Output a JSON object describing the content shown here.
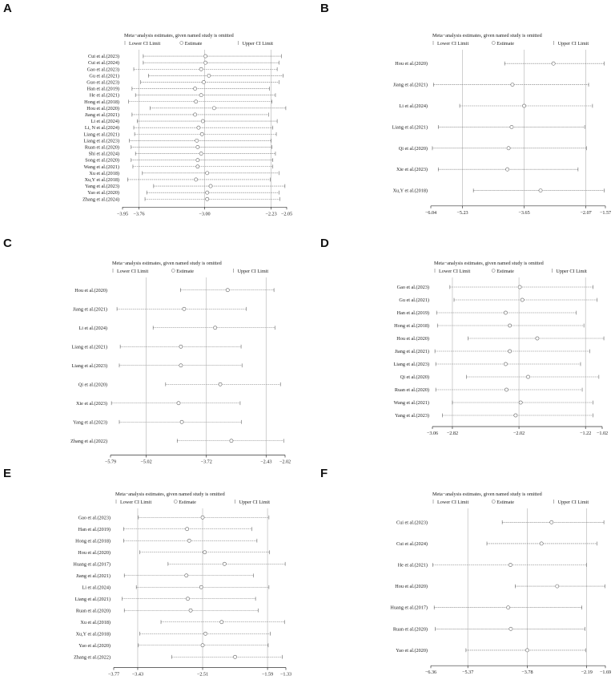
{
  "chart_data": [
    {
      "panel": "A",
      "type": "forest",
      "title": "Meta−analysis estimates, given named study is omitted",
      "legend": [
        "Lower CI Limit",
        "Estimate",
        "Upper CI Limit"
      ],
      "xticks": [
        -3.95,
        -3.76,
        -3.0,
        -2.23,
        -2.05
      ],
      "xtick_labels": [
        "−3.95",
        "−3.76",
        "−3.00",
        "−2.23",
        "−2.05"
      ],
      "vlines": [
        -3.76,
        -3.0,
        -2.23
      ],
      "xlim": [
        -3.95,
        -2.05
      ],
      "studies": [
        {
          "label": "Cui et al.(2023)",
          "lower": -3.71,
          "estimate": -2.99,
          "upper": -2.11
        },
        {
          "label": "Cui et al.(2024)",
          "lower": -3.71,
          "estimate": -2.99,
          "upper": -2.14
        },
        {
          "label": "Gao et al.(2023)",
          "lower": -3.82,
          "estimate": -3.04,
          "upper": -2.16
        },
        {
          "label": "Gu et al.(2021)",
          "lower": -3.65,
          "estimate": -2.95,
          "upper": -2.09
        },
        {
          "label": "Guo et al.(2023)",
          "lower": -3.74,
          "estimate": -3.01,
          "upper": -2.14
        },
        {
          "label": "Han et al.(2019)",
          "lower": -3.84,
          "estimate": -3.11,
          "upper": -2.25
        },
        {
          "label": "He et al.(2021)",
          "lower": -3.8,
          "estimate": -3.04,
          "upper": -2.18
        },
        {
          "label": "Hong et al.(2018)",
          "lower": -3.88,
          "estimate": -3.1,
          "upper": -2.22
        },
        {
          "label": "Hou et al.(2020)",
          "lower": -3.63,
          "estimate": -2.89,
          "upper": -2.06
        },
        {
          "label": "Jiang et al.(2021)",
          "lower": -3.84,
          "estimate": -3.11,
          "upper": -2.26
        },
        {
          "label": "Li et al.(2024)",
          "lower": -3.78,
          "estimate": -3.02,
          "upper": -2.16
        },
        {
          "label": "Li, N et al.(2024)",
          "lower": -3.82,
          "estimate": -3.07,
          "upper": -2.21
        },
        {
          "label": "Liang et al.(2021)",
          "lower": -3.81,
          "estimate": -3.03,
          "upper": -2.17
        },
        {
          "label": "Liang et al.(2023)",
          "lower": -3.87,
          "estimate": -3.09,
          "upper": -2.23
        },
        {
          "label": "Ruan et al.(2020)",
          "lower": -3.85,
          "estimate": -3.08,
          "upper": -2.22
        },
        {
          "label": "Shi et al.(2024)",
          "lower": -3.8,
          "estimate": -3.04,
          "upper": -2.18
        },
        {
          "label": "Song et al.(2020)",
          "lower": -3.85,
          "estimate": -3.08,
          "upper": -2.21
        },
        {
          "label": "Wang et al.(2021)",
          "lower": -3.83,
          "estimate": -3.08,
          "upper": -2.21
        },
        {
          "label": "Xu et al.(2018)",
          "lower": -3.72,
          "estimate": -2.97,
          "upper": -2.14
        },
        {
          "label": "Xu,Y et al.(2018)",
          "lower": -3.89,
          "estimate": -3.1,
          "upper": -2.24
        },
        {
          "label": "Yang et al.(2023)",
          "lower": -3.59,
          "estimate": -2.93,
          "upper": -2.07
        },
        {
          "label": "Yao et al.(2020)",
          "lower": -3.67,
          "estimate": -2.97,
          "upper": -2.14
        },
        {
          "label": "Zhang et al.(2024)",
          "lower": -3.69,
          "estimate": -2.97,
          "upper": -2.13
        }
      ]
    },
    {
      "panel": "B",
      "type": "forest",
      "title": "Meta−analysis estimates, given named study is omitted",
      "legend": [
        "Lower CI Limit",
        "Estimate",
        "Upper CI Limit"
      ],
      "xticks": [
        -6.04,
        -5.23,
        -3.65,
        -2.07,
        -1.57
      ],
      "xtick_labels": [
        "−6.04",
        "−5.23",
        "−3.65",
        "−2.07",
        "−1.57"
      ],
      "vlines": [
        -5.23,
        -3.65,
        -2.07
      ],
      "xlim": [
        -6.04,
        -1.57
      ],
      "studies": [
        {
          "label": "Hou et al.(2020)",
          "lower": -4.15,
          "estimate": -2.9,
          "upper": -1.6
        },
        {
          "label": "Jiang et al.(2021)",
          "lower": -5.97,
          "estimate": -3.95,
          "upper": -2.0
        },
        {
          "label": "Li et al.(2024)",
          "lower": -5.3,
          "estimate": -3.65,
          "upper": -1.9
        },
        {
          "label": "Liang et al.(2021)",
          "lower": -5.85,
          "estimate": -3.97,
          "upper": -2.1
        },
        {
          "label": "Qi et al.(2020)",
          "lower": -6.0,
          "estimate": -4.05,
          "upper": -2.05
        },
        {
          "label": "Xie et al.(2023)",
          "lower": -5.85,
          "estimate": -4.08,
          "upper": -2.27
        },
        {
          "label": "Xu,Y et al.(2018)",
          "lower": -4.95,
          "estimate": -3.23,
          "upper": -1.6
        }
      ]
    },
    {
      "panel": "C",
      "type": "forest",
      "title": "Meta−analysis estimates, given named study is omitted",
      "legend": [
        "Lower CI Limit",
        "Estimate",
        "Upper CI Limit"
      ],
      "xticks": [
        -5.79,
        -5.02,
        -3.72,
        -2.43,
        -2.02
      ],
      "xtick_labels": [
        "−5.79",
        "−5.02",
        "−3.72",
        "−2.43",
        "−2.02"
      ],
      "vlines": [
        -5.02,
        -3.72,
        -2.43
      ],
      "xlim": [
        -5.79,
        -2.02
      ],
      "studies": [
        {
          "label": "Hou et al.(2020)",
          "lower": -4.28,
          "estimate": -3.26,
          "upper": -2.26
        },
        {
          "label": "Jiang et al.(2021)",
          "lower": -5.65,
          "estimate": -4.2,
          "upper": -2.86
        },
        {
          "label": "Li et al.(2024)",
          "lower": -4.87,
          "estimate": -3.53,
          "upper": -2.24
        },
        {
          "label": "Liang et al.(2021)",
          "lower": -5.58,
          "estimate": -4.27,
          "upper": -2.97
        },
        {
          "label": "Liang et al.(2023)",
          "lower": -5.6,
          "estimate": -4.27,
          "upper": -2.95
        },
        {
          "label": "Qi et al.(2020)",
          "lower": -4.6,
          "estimate": -3.42,
          "upper": -2.12
        },
        {
          "label": "Xie et al.(2023)",
          "lower": -5.77,
          "estimate": -4.32,
          "upper": -2.99
        },
        {
          "label": "Yang et al.(2023)",
          "lower": -5.6,
          "estimate": -4.25,
          "upper": -2.96
        },
        {
          "label": "Zhang et al.(2022)",
          "lower": -4.35,
          "estimate": -3.18,
          "upper": -2.05
        }
      ]
    },
    {
      "panel": "D",
      "type": "forest",
      "title": "Meta−analysis estimates, given named study is omitted",
      "legend": [
        "Lower CI Limit",
        "Estimate",
        "Upper CI Limit"
      ],
      "xticks": [
        -3.06,
        -2.82,
        -2.02,
        -1.22,
        -1.02
      ],
      "xtick_labels": [
        "−3.06",
        "−2.82",
        "−2.02",
        "−1.22",
        "−1.02"
      ],
      "vlines": [
        -2.82,
        -2.02,
        -1.22
      ],
      "xlim": [
        -3.06,
        -1.02
      ],
      "studies": [
        {
          "label": "Gao et al.(2023)",
          "lower": -2.85,
          "estimate": -2.01,
          "upper": -1.13
        },
        {
          "label": "Gu et al.(2021)",
          "lower": -2.8,
          "estimate": -1.98,
          "upper": -1.08
        },
        {
          "label": "Han et al.(2019)",
          "lower": -3.01,
          "estimate": -2.18,
          "upper": -1.33
        },
        {
          "label": "Hong et al.(2018)",
          "lower": -3.0,
          "estimate": -2.13,
          "upper": -1.24
        },
        {
          "label": "Hou et al.(2020)",
          "lower": -2.63,
          "estimate": -1.8,
          "upper": -1.0
        },
        {
          "label": "Jiang et al.(2021)",
          "lower": -3.03,
          "estimate": -2.13,
          "upper": -1.17
        },
        {
          "label": "Liang et al.(2023)",
          "lower": -3.02,
          "estimate": -2.18,
          "upper": -1.28
        },
        {
          "label": "Qi et al.(2020)",
          "lower": -2.65,
          "estimate": -1.91,
          "upper": -1.06
        },
        {
          "label": "Ruan et al.(2020)",
          "lower": -3.02,
          "estimate": -2.17,
          "upper": -1.26
        },
        {
          "label": "Wang et al.(2021)",
          "lower": -2.82,
          "estimate": -2.0,
          "upper": -1.13
        },
        {
          "label": "Yang et al.(2023)",
          "lower": -2.94,
          "estimate": -2.06,
          "upper": -1.13
        }
      ]
    },
    {
      "panel": "E",
      "type": "forest",
      "title": "Meta−analysis estimates, given named study is omitted",
      "legend": [
        "Lower CI Limit",
        "Estimate",
        "Upper CI Limit"
      ],
      "xticks": [
        -3.77,
        -3.43,
        -2.51,
        -1.59,
        -1.33
      ],
      "xtick_labels": [
        "−3.77",
        "−3.43",
        "−2.51",
        "−1.59",
        "−1.33"
      ],
      "vlines": [
        -3.43,
        -2.51,
        -1.59
      ],
      "xlim": [
        -3.77,
        -1.33
      ],
      "studies": [
        {
          "label": "Gao et al.(2023)",
          "lower": -3.42,
          "estimate": -2.51,
          "upper": -1.57
        },
        {
          "label": "Han et al.(2019)",
          "lower": -3.63,
          "estimate": -2.73,
          "upper": -1.81
        },
        {
          "label": "Hong et al.(2018)",
          "lower": -3.63,
          "estimate": -2.7,
          "upper": -1.74
        },
        {
          "label": "Hou et al.(2020)",
          "lower": -3.4,
          "estimate": -2.48,
          "upper": -1.56
        },
        {
          "label": "Huang et al.(2017)",
          "lower": -3.0,
          "estimate": -2.2,
          "upper": -1.34
        },
        {
          "label": "Jiang et al.(2021)",
          "lower": -3.62,
          "estimate": -2.74,
          "upper": -1.79
        },
        {
          "label": "Li et al.(2024)",
          "lower": -3.45,
          "estimate": -2.53,
          "upper": -1.57
        },
        {
          "label": "Liang et al.(2021)",
          "lower": -3.65,
          "estimate": -2.72,
          "upper": -1.76
        },
        {
          "label": "Ruan et al.(2020)",
          "lower": -3.62,
          "estimate": -2.68,
          "upper": -1.72
        },
        {
          "label": "Xu et al.(2018)",
          "lower": -3.1,
          "estimate": -2.24,
          "upper": -1.35
        },
        {
          "label": "Xu,Y et al.(2018)",
          "lower": -3.4,
          "estimate": -2.47,
          "upper": -1.55
        },
        {
          "label": "Yao et al.(2020)",
          "lower": -3.42,
          "estimate": -2.51,
          "upper": -1.58
        },
        {
          "label": "Zhang et al.(2022)",
          "lower": -2.95,
          "estimate": -2.05,
          "upper": -1.38
        }
      ]
    },
    {
      "panel": "F",
      "type": "forest",
      "title": "Meta−analysis estimates, given named study is omitted",
      "legend": [
        "Lower CI Limit",
        "Estimate",
        "Upper CI Limit"
      ],
      "xticks": [
        -6.36,
        -5.37,
        -3.78,
        -2.19,
        -1.69
      ],
      "xtick_labels": [
        "−6.36",
        "−5.37",
        "−3.78",
        "−2.19",
        "−1.69"
      ],
      "vlines": [
        -5.37,
        -3.78,
        -2.19
      ],
      "xlim": [
        -6.36,
        -1.69
      ],
      "studies": [
        {
          "label": "Cui et al.(2023)",
          "lower": -4.45,
          "estimate": -3.13,
          "upper": -1.73
        },
        {
          "label": "Cui et al.(2024)",
          "lower": -4.86,
          "estimate": -3.4,
          "upper": -1.91
        },
        {
          "label": "He et al.(2021)",
          "lower": -6.31,
          "estimate": -4.23,
          "upper": -2.19
        },
        {
          "label": "Hou et al.(2020)",
          "lower": -4.1,
          "estimate": -2.98,
          "upper": -1.7
        },
        {
          "label": "Huang et al.(2017)",
          "lower": -6.27,
          "estimate": -4.29,
          "upper": -2.32
        },
        {
          "label": "Ruan et al.(2020)",
          "lower": -6.24,
          "estimate": -4.22,
          "upper": -2.24
        },
        {
          "label": "Yao et al.(2020)",
          "lower": -5.42,
          "estimate": -3.78,
          "upper": -2.22
        }
      ]
    }
  ]
}
